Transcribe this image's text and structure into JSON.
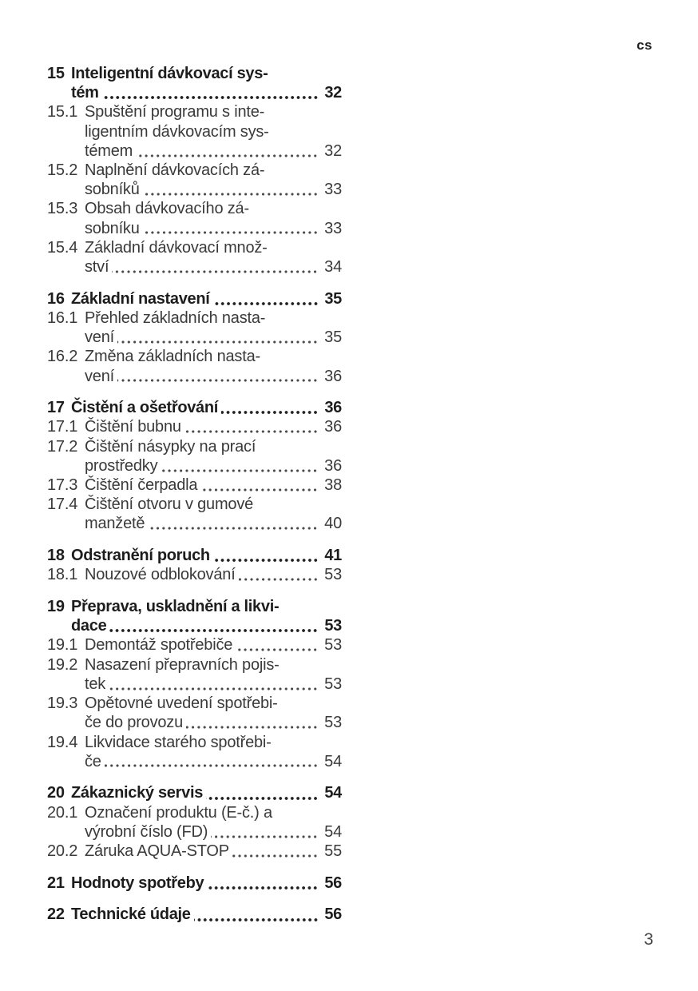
{
  "page": {
    "language_code": "cs",
    "page_number": "3"
  },
  "colors": {
    "background": "#ffffff",
    "text_regular": "#3a3a3a",
    "text_bold": "#1d1d1d"
  },
  "toc": {
    "entries": [
      {
        "type": "chapter",
        "number": "15",
        "lines": [
          "Inteligentní dávkovací sys-",
          "tém"
        ],
        "page": "32"
      },
      {
        "type": "sub",
        "number": "15.1",
        "lines": [
          "Spuštění programu s inte-",
          "ligentním dávkovacím sys-",
          "témem"
        ],
        "page": "32"
      },
      {
        "type": "sub",
        "number": "15.2",
        "lines": [
          "Naplnění dávkovacích zá-",
          "sobníků"
        ],
        "page": "33"
      },
      {
        "type": "sub",
        "number": "15.3",
        "lines": [
          "Obsah dávkovacího zá-",
          "sobníku"
        ],
        "page": "33"
      },
      {
        "type": "sub",
        "number": "15.4",
        "lines": [
          "Základní dávkovací množ-",
          "ství"
        ],
        "page": "34"
      },
      {
        "type": "chapter",
        "number": "16",
        "lines": [
          "Základní nastavení"
        ],
        "page": "35"
      },
      {
        "type": "sub",
        "number": "16.1",
        "lines": [
          "Přehled základních nasta-",
          "vení"
        ],
        "page": "35"
      },
      {
        "type": "sub",
        "number": "16.2",
        "lines": [
          "Změna základních nasta-",
          "vení"
        ],
        "page": "36"
      },
      {
        "type": "chapter",
        "number": "17",
        "lines": [
          "Čistění a ošetřování"
        ],
        "page": "36"
      },
      {
        "type": "sub",
        "number": "17.1",
        "lines": [
          "Čištění bubnu"
        ],
        "page": "36"
      },
      {
        "type": "sub",
        "number": "17.2",
        "lines": [
          "Čištění násypky na prací",
          "prostředky"
        ],
        "page": "36"
      },
      {
        "type": "sub",
        "number": "17.3",
        "lines": [
          "Čištění čerpadla"
        ],
        "page": "38"
      },
      {
        "type": "sub",
        "number": "17.4",
        "lines": [
          "Čištění otvoru v gumové",
          "manžetě"
        ],
        "page": "40"
      },
      {
        "type": "chapter",
        "number": "18",
        "lines": [
          "Odstranění poruch"
        ],
        "page": "41"
      },
      {
        "type": "sub",
        "number": "18.1",
        "lines": [
          "Nouzové odblokování"
        ],
        "page": "53"
      },
      {
        "type": "chapter",
        "number": "19",
        "lines": [
          "Přeprava, uskladnění a likvi-",
          "dace"
        ],
        "page": "53"
      },
      {
        "type": "sub",
        "number": "19.1",
        "lines": [
          "Demontáž spotřebiče"
        ],
        "page": "53"
      },
      {
        "type": "sub",
        "number": "19.2",
        "lines": [
          "Nasazení přepravních pojis-",
          "tek"
        ],
        "page": "53"
      },
      {
        "type": "sub",
        "number": "19.3",
        "lines": [
          "Opětovné uvedení spotřebi-",
          "če do provozu"
        ],
        "page": "53"
      },
      {
        "type": "sub",
        "number": "19.4",
        "lines": [
          "Likvidace starého spotřebi-",
          "če"
        ],
        "page": "54"
      },
      {
        "type": "chapter",
        "number": "20",
        "lines": [
          "Zákaznický servis"
        ],
        "page": "54"
      },
      {
        "type": "sub",
        "number": "20.1",
        "lines": [
          "Označení produktu (E-č.) a",
          "výrobní číslo (FD)"
        ],
        "page": "54"
      },
      {
        "type": "sub",
        "number": "20.2",
        "lines": [
          "Záruka AQUA-STOP"
        ],
        "page": "55"
      },
      {
        "type": "chapter",
        "number": "21",
        "lines": [
          "Hodnoty spotřeby"
        ],
        "page": "56"
      },
      {
        "type": "chapter",
        "number": "22",
        "lines": [
          "Technické údaje"
        ],
        "page": "56"
      }
    ]
  }
}
